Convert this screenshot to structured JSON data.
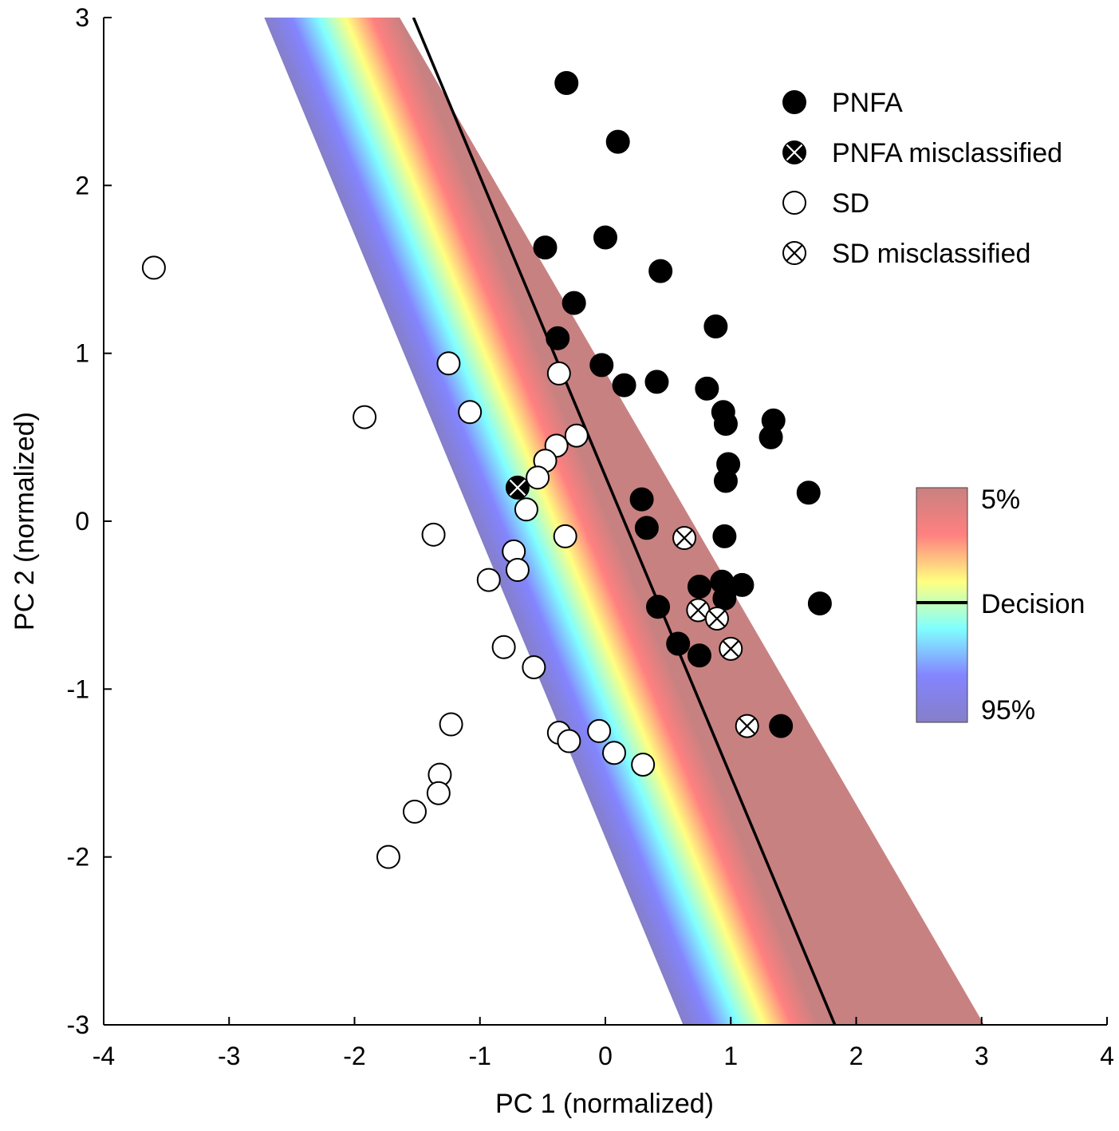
{
  "chart_data": {
    "type": "scatter",
    "title": "",
    "xlabel": "PC 1 (normalized)",
    "ylabel": "PC 2 (normalized)",
    "xlim": [
      -4,
      4
    ],
    "ylim": [
      -3,
      3
    ],
    "xticks": [
      -4,
      -3,
      -2,
      -1,
      0,
      1,
      2,
      3,
      4
    ],
    "yticks": [
      -3,
      -2,
      -1,
      0,
      1,
      2,
      3
    ],
    "grid": false,
    "legend_position": "top-right",
    "decision_boundary": {
      "x_at_y_top": -1.53,
      "x_at_y_bottom": 1.83
    },
    "probability_band": {
      "low_boundary": [
        [
          -2.72,
          3
        ],
        [
          0.62,
          -3
        ]
      ],
      "high_boundary": [
        [
          -1.64,
          3
        ],
        [
          3.02,
          -3
        ]
      ]
    },
    "colorbar": {
      "labels": {
        "low": "5%",
        "mid": "Decision",
        "high": "95%"
      },
      "colors": [
        "#857fc8",
        "#8484ff",
        "#80ffff",
        "#ffff80",
        "#ff8080",
        "#c88181"
      ]
    },
    "series": [
      {
        "name": "PNFA",
        "marker": "filled-circle",
        "x": [
          -0.31,
          0.1,
          0.0,
          -0.48,
          0.44,
          -0.25,
          -0.38,
          0.88,
          -0.03,
          0.15,
          0.41,
          0.81,
          0.94,
          0.96,
          1.34,
          1.32,
          0.98,
          0.96,
          1.62,
          0.29,
          0.33,
          0.95,
          0.93,
          0.95,
          1.09,
          0.75,
          0.42,
          0.58,
          0.75,
          1.71,
          1.4
        ],
        "y": [
          2.61,
          2.26,
          1.69,
          1.63,
          1.49,
          1.3,
          1.09,
          1.16,
          0.93,
          0.81,
          0.83,
          0.79,
          0.65,
          0.58,
          0.6,
          0.5,
          0.34,
          0.24,
          0.17,
          0.13,
          -0.04,
          -0.09,
          -0.36,
          -0.46,
          -0.38,
          -0.39,
          -0.51,
          -0.73,
          -0.8,
          -0.49,
          -1.22
        ]
      },
      {
        "name": "PNFA misclassified",
        "marker": "filled-circle-x",
        "x": [
          -0.7
        ],
        "y": [
          0.2
        ]
      },
      {
        "name": "SD",
        "marker": "open-circle",
        "x": [
          -3.6,
          -1.25,
          -1.92,
          -1.08,
          -0.37,
          -0.23,
          -0.39,
          -0.48,
          -0.54,
          -0.63,
          -1.37,
          -0.32,
          -0.73,
          -0.7,
          -0.93,
          -0.81,
          -0.57,
          -1.23,
          -0.37,
          -0.29,
          -0.05,
          0.07,
          0.3,
          -1.32,
          -1.33,
          -1.52,
          -1.73
        ],
        "y": [
          1.51,
          0.94,
          0.62,
          0.65,
          0.88,
          0.51,
          0.45,
          0.36,
          0.26,
          0.07,
          -0.08,
          -0.09,
          -0.18,
          -0.29,
          -0.35,
          -0.75,
          -0.87,
          -1.21,
          -1.26,
          -1.31,
          -1.25,
          -1.38,
          -1.45,
          -1.51,
          -1.62,
          -1.73,
          -2.0
        ]
      },
      {
        "name": "SD misclassified",
        "marker": "open-circle-x",
        "x": [
          0.63,
          0.74,
          0.89,
          1.0,
          1.13
        ],
        "y": [
          -0.1,
          -0.53,
          -0.58,
          -0.76,
          -1.22
        ]
      }
    ]
  }
}
